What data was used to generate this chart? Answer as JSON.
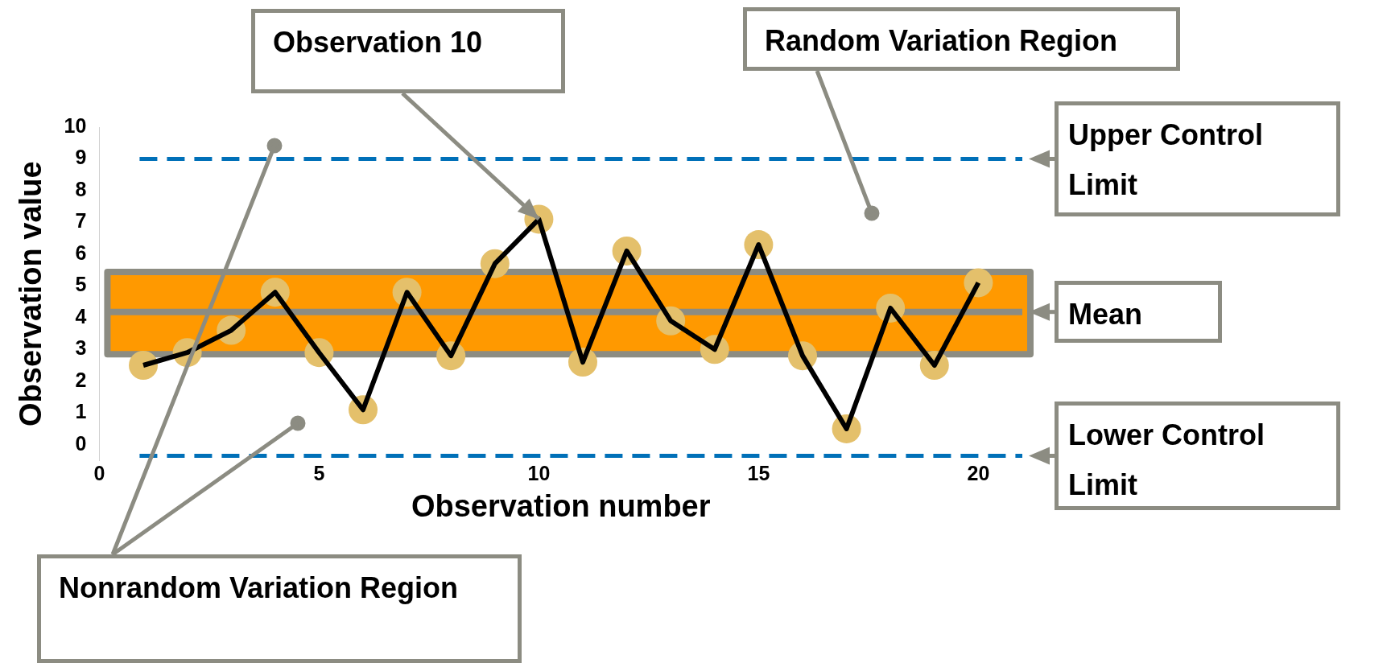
{
  "chart_data": {
    "type": "line",
    "xlabel": "Observation number",
    "ylabel": "Observation value",
    "xlim": [
      0,
      21
    ],
    "xticks": [
      0,
      5,
      10,
      15,
      20
    ],
    "ylim": [
      -0.5,
      10
    ],
    "yticks": [
      0,
      1,
      2,
      3,
      4,
      5,
      6,
      7,
      8,
      9,
      10
    ],
    "grid": false,
    "series": [
      {
        "type": "scatter",
        "marker": "circle",
        "color": "#e4c06b",
        "x": [
          1,
          2,
          3,
          4,
          5,
          6,
          7,
          8,
          9,
          10,
          11,
          12,
          13,
          14,
          15,
          16,
          17,
          18,
          19,
          20
        ],
        "values": [
          2.5,
          2.9,
          3.6,
          4.8,
          2.9,
          1.1,
          4.8,
          2.8,
          5.7,
          7.1,
          2.6,
          6.1,
          3.9,
          3.0,
          6.3,
          2.8,
          0.5,
          4.3,
          2.5,
          5.1
        ]
      },
      {
        "type": "line",
        "marker": "none",
        "color": "#000000",
        "x": [
          1,
          2,
          3,
          4,
          5,
          6,
          7,
          8,
          9,
          10,
          11,
          12,
          13,
          14,
          15,
          16,
          17,
          18,
          19,
          20
        ],
        "values": [
          2.5,
          2.9,
          3.6,
          4.8,
          2.9,
          1.1,
          4.8,
          2.8,
          5.7,
          7.1,
          2.6,
          6.1,
          3.9,
          3.0,
          6.3,
          2.8,
          0.5,
          4.3,
          2.5,
          5.1
        ]
      }
    ],
    "bands": [
      {
        "axis": "y",
        "from": 2.85,
        "to": 5.44,
        "color": "#ff9900"
      }
    ],
    "ref_lines": [
      {
        "axis": "y",
        "value": 9,
        "label": "Upper Control Limit",
        "color": "#0070b8",
        "line_style": "dashed"
      },
      {
        "axis": "y",
        "value": 4.18,
        "label": "Mean",
        "color": "#8c8c82",
        "line_style": "solid"
      },
      {
        "axis": "y",
        "value": -0.35,
        "label": "Lower Control Limit",
        "color": "#0070b8",
        "line_style": "dashed"
      }
    ],
    "annotations": [
      {
        "text": "Observation 10",
        "x": 10,
        "y": 7.1
      },
      "Random Variation Region",
      "Nonrandom Variation Region"
    ]
  }
}
